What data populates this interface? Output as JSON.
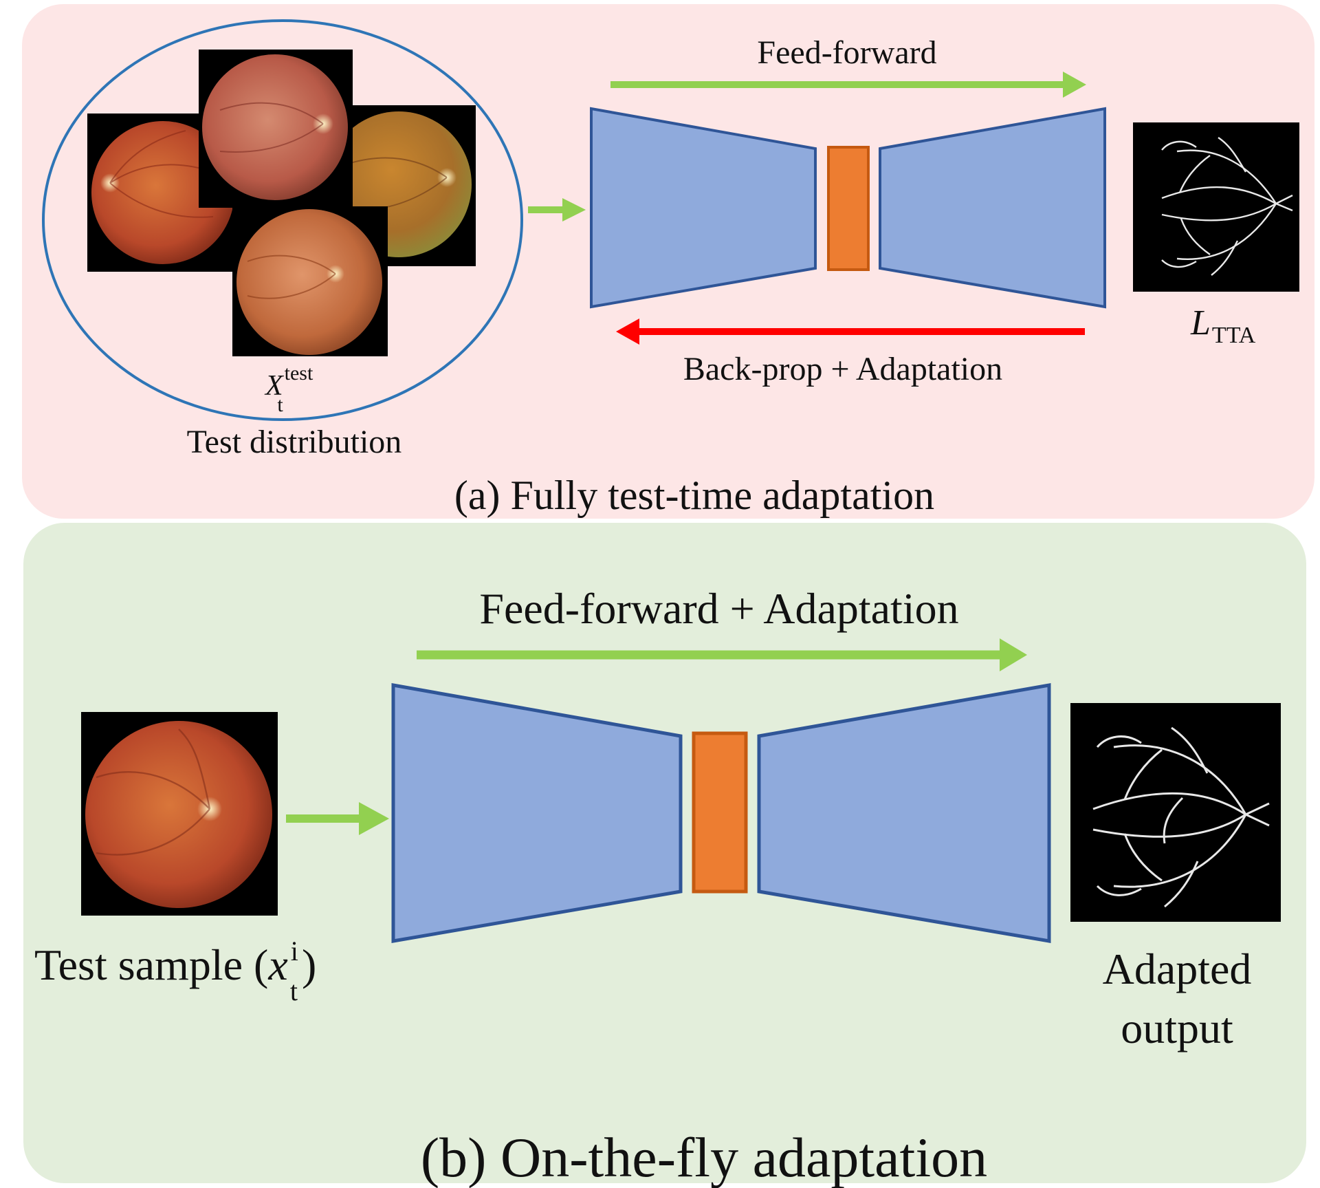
{
  "colors": {
    "panel_a_bg": "#fde6e6",
    "panel_b_bg": "#e3eedb",
    "network_fill": "#8faadc",
    "network_stroke": "#2f5597",
    "bottleneck_fill": "#ed7d31",
    "bottleneck_stroke": "#c55a11",
    "forward_arrow": "#92d050",
    "backward_arrow": "#ff0000",
    "ellipse_stroke": "#2e75b6",
    "fundus_bg": "#000000"
  },
  "panel_a": {
    "caption": "(a) Fully test-time adaptation",
    "forward_label": "Feed-forward",
    "backward_label": "Back-prop + Adaptation",
    "input_symbol": {
      "base": "X",
      "sub": "t",
      "sup": "test"
    },
    "input_label": "Test distribution",
    "loss_symbol": {
      "base": "L",
      "sub": "TTA"
    },
    "icons": [
      "fundus-image-icon",
      "vessel-segmentation-icon"
    ]
  },
  "panel_b": {
    "caption": "(b) On-the-fly adaptation",
    "forward_label": "Feed-forward + Adaptation",
    "input_label_prefix": "Test sample (",
    "input_symbol": {
      "base": "x",
      "sub": "t",
      "sup": "i"
    },
    "input_label_suffix": ")",
    "output_label_line1": "Adapted",
    "output_label_line2": "output",
    "icons": [
      "fundus-image-icon",
      "vessel-segmentation-icon"
    ]
  }
}
